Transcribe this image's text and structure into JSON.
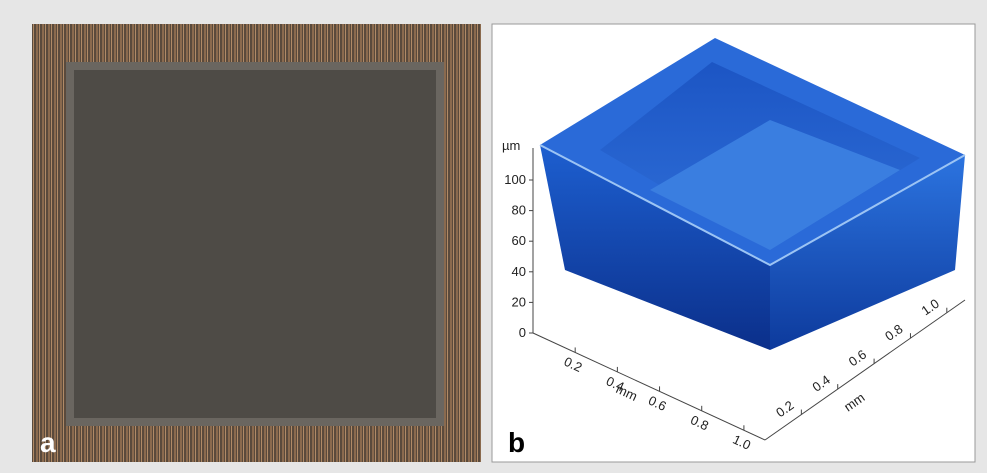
{
  "panels": [
    {
      "label": "a"
    },
    {
      "label": "b",
      "z_axis": {
        "unit": "µm",
        "lim": [
          0,
          100
        ],
        "ticks": [
          0,
          20,
          40,
          60,
          80,
          100
        ]
      },
      "x_axis": {
        "unit": "mm",
        "lim": [
          0,
          1.1
        ],
        "ticks": [
          0.2,
          0.4,
          0.6,
          0.8,
          {
            "value": 1,
            "label": "1.0"
          }
        ]
      },
      "y_axis": {
        "unit": "mm",
        "lim": [
          0,
          1.1
        ],
        "ticks": [
          0.2,
          0.4,
          0.6,
          0.8,
          {
            "value": 1,
            "label": "1.0"
          }
        ]
      }
    }
  ]
}
